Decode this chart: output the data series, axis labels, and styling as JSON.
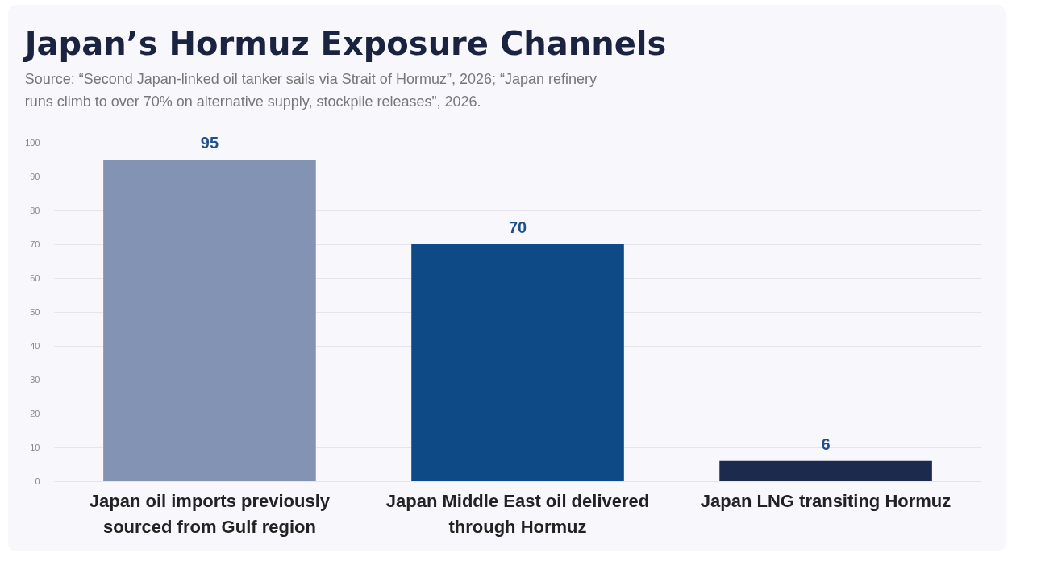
{
  "chart_data": {
    "type": "bar",
    "title": "Japan’s Hormuz Exposure Channels",
    "subtitle": "Source: “Second Japan-linked oil tanker sails via Strait of Hormuz”, 2026; “Japan refinery runs climb to over 70% on alternative supply, stockpile releases”, 2026.",
    "categories": [
      "Japan oil imports previously sourced from Gulf region",
      "Japan Middle East oil delivered through Hormuz",
      "Japan LNG transiting Hormuz"
    ],
    "values": [
      95,
      70,
      6
    ],
    "colors": [
      "#8293b3",
      "#0e4a86",
      "#1c2b4d"
    ],
    "ylim": [
      0,
      100
    ],
    "yticks": [
      0,
      10,
      20,
      30,
      40,
      50,
      60,
      70,
      80,
      90,
      100
    ],
    "grid": "y",
    "data_labels": true
  }
}
